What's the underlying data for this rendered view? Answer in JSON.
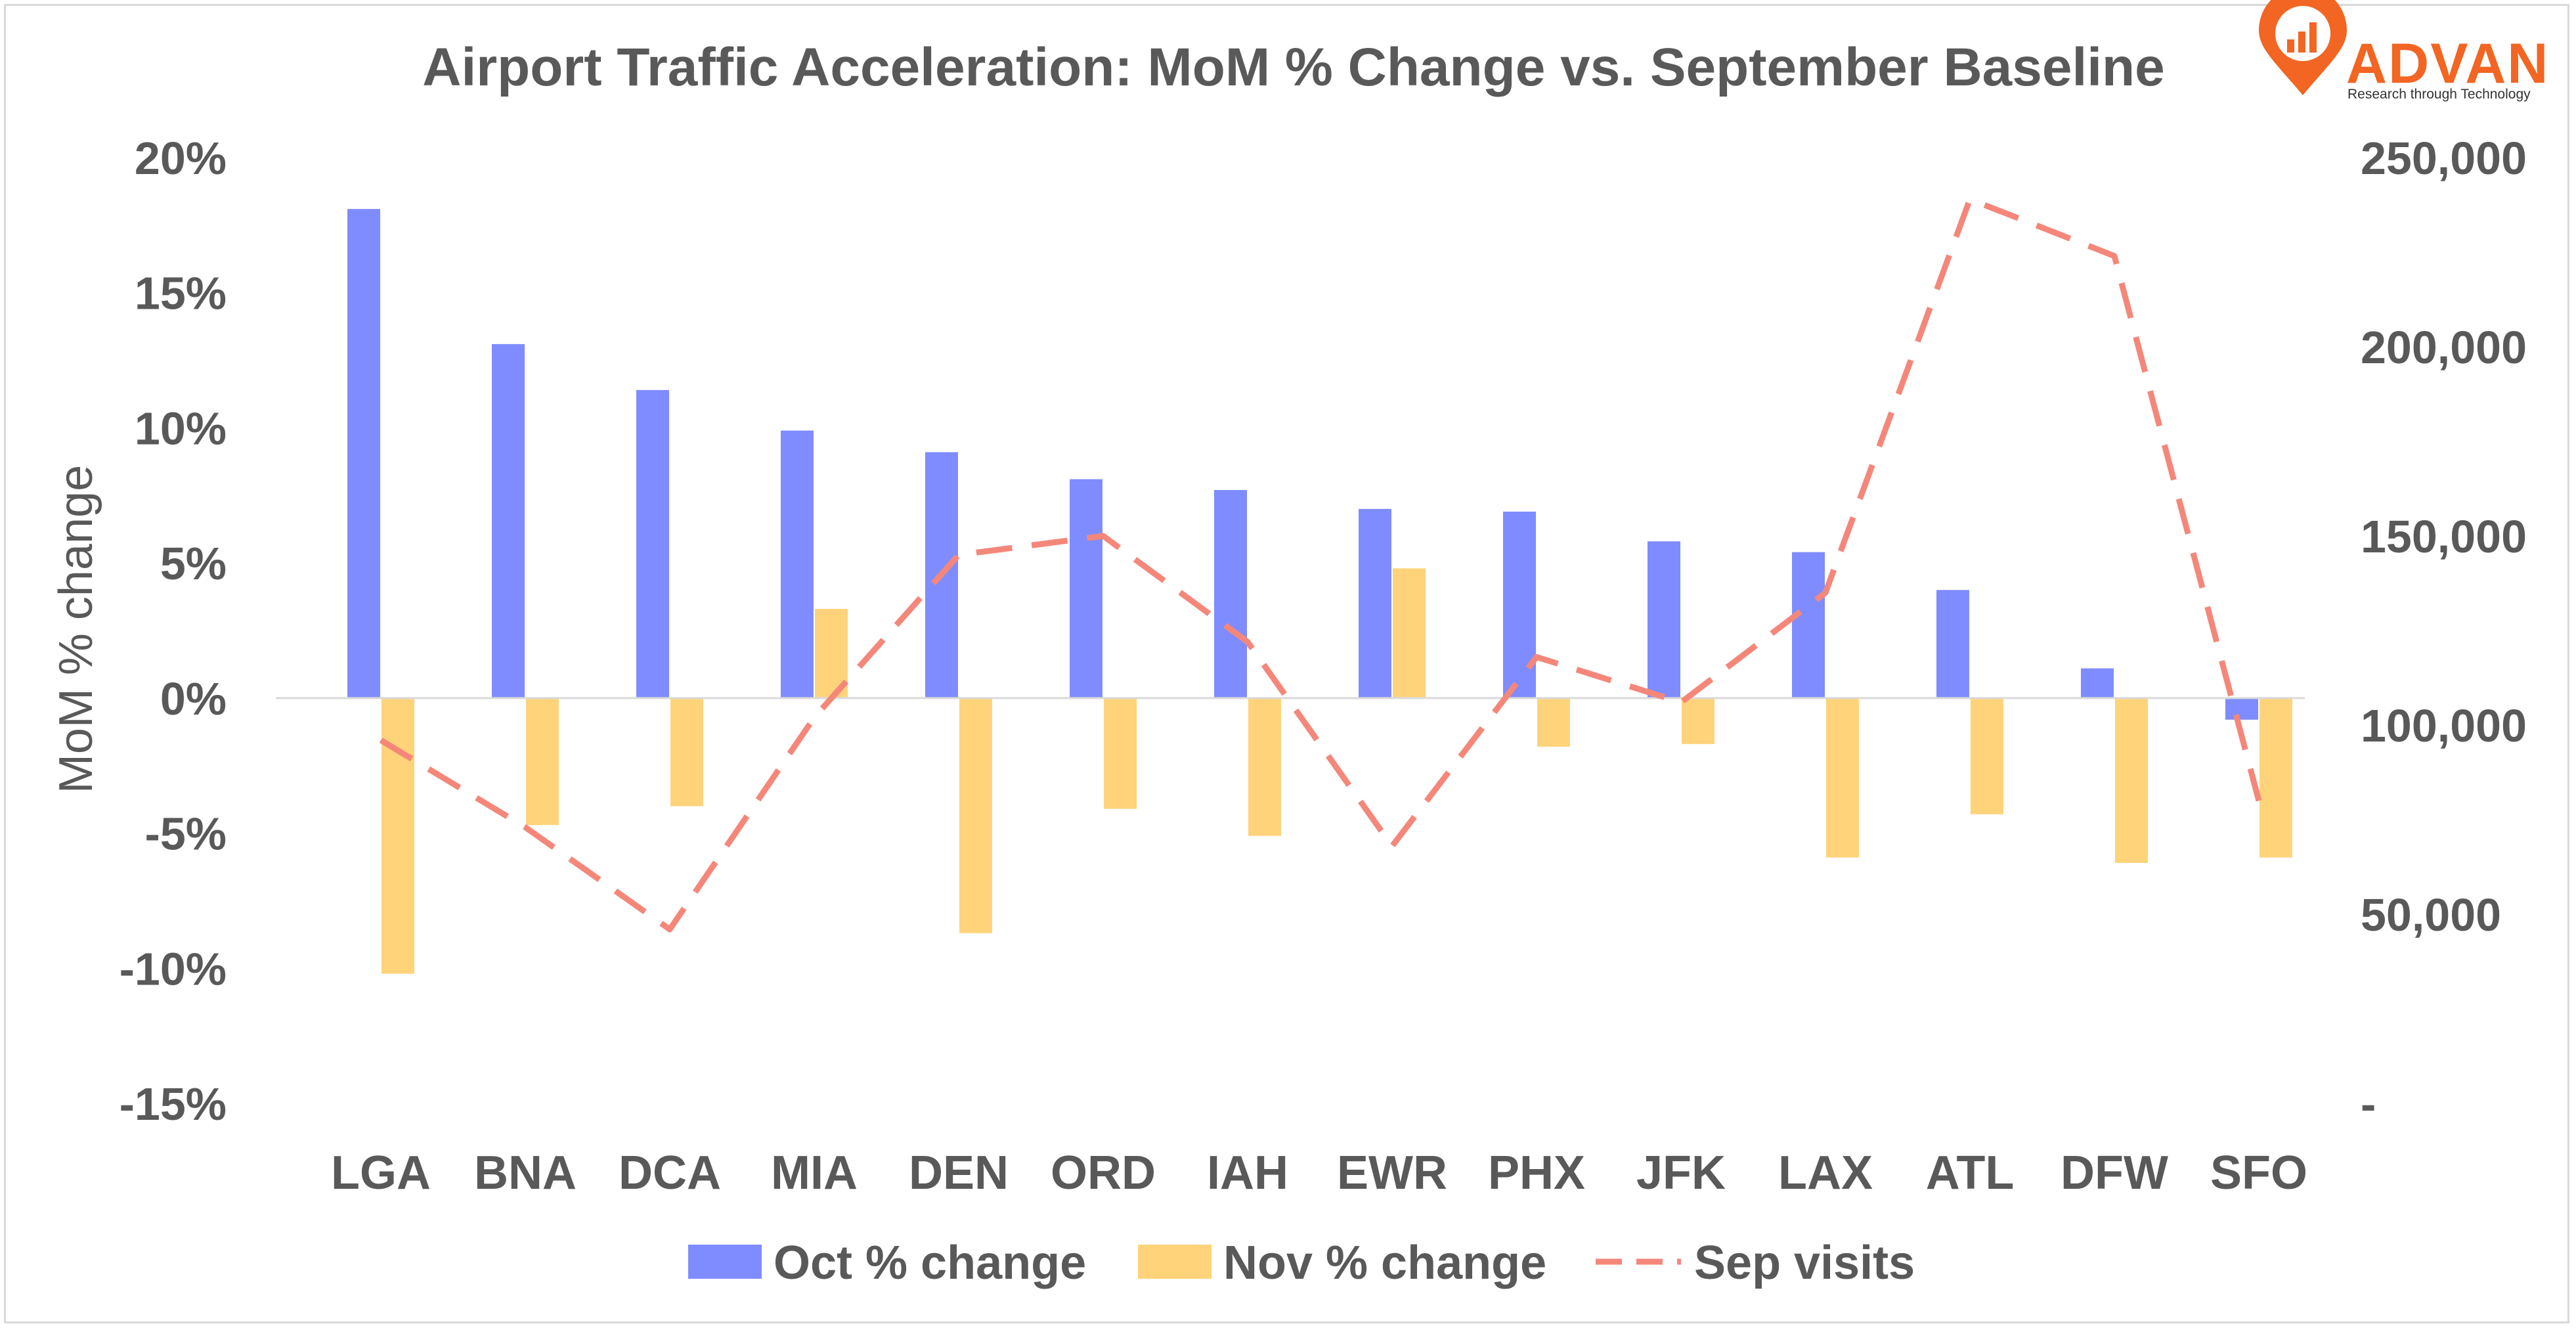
{
  "logo": {
    "word": "ADVAN",
    "tagline": "Research through Technology",
    "color": "#f26522"
  },
  "chart_data": {
    "type": "bar",
    "title": "Airport Traffic Acceleration: MoM % Change vs. September Baseline",
    "categories": [
      "LGA",
      "BNA",
      "DCA",
      "MIA",
      "DEN",
      "ORD",
      "IAH",
      "EWR",
      "PHX",
      "JFK",
      "LAX",
      "ATL",
      "DFW",
      "SFO"
    ],
    "series": [
      {
        "name": "Oct % change",
        "type": "bar",
        "axis": "left",
        "color": "#7f8cff",
        "values": [
          18.1,
          13.1,
          11.4,
          9.9,
          9.1,
          8.1,
          7.7,
          7.0,
          6.9,
          5.8,
          5.4,
          4.0,
          1.1,
          -0.8
        ]
      },
      {
        "name": "Nov % change",
        "type": "bar",
        "axis": "left",
        "color": "#ffd37a",
        "values": [
          -10.2,
          -4.7,
          -4.0,
          3.3,
          -8.7,
          -4.1,
          -5.1,
          4.8,
          -1.8,
          -1.7,
          -5.9,
          -4.3,
          -6.1,
          -5.9
        ]
      },
      {
        "name": "Sep visits",
        "type": "line",
        "style": "dashed",
        "axis": "right",
        "color": "#f4877a",
        "values": [
          96000,
          73000,
          46000,
          102000,
          145000,
          150000,
          122000,
          68000,
          118000,
          106000,
          135000,
          239000,
          224000,
          80000
        ]
      }
    ],
    "y_left": {
      "label": "MoM % change",
      "lim": [
        -15,
        20
      ],
      "ticks": [
        20,
        15,
        10,
        5,
        0,
        -5,
        -10,
        -15
      ],
      "tick_labels": [
        "20%",
        "15%",
        "10%",
        "5%",
        "0%",
        "-5%",
        "-10%",
        "-15%"
      ]
    },
    "y_right": {
      "label": "",
      "lim": [
        0,
        250000
      ],
      "ticks": [
        250000,
        200000,
        150000,
        100000,
        50000,
        0
      ],
      "tick_labels": [
        "250,000",
        "200,000",
        "150,000",
        "100,000",
        "50,000",
        "-"
      ]
    },
    "grid": false,
    "legend": {
      "position": "bottom",
      "items": [
        "Oct % change",
        "Nov % change",
        "Sep visits"
      ]
    }
  }
}
